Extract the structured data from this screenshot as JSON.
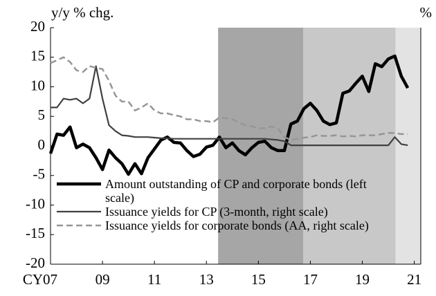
{
  "chart_data": {
    "type": "line",
    "y_label": "y/y % chg.",
    "y2_label": "%",
    "x": [
      2007.0,
      2007.25,
      2007.5,
      2007.75,
      2008.0,
      2008.25,
      2008.5,
      2008.75,
      2009.0,
      2009.25,
      2009.5,
      2009.75,
      2010.0,
      2010.25,
      2010.5,
      2010.75,
      2011.0,
      2011.25,
      2011.5,
      2011.75,
      2012.0,
      2012.25,
      2012.5,
      2012.75,
      2013.0,
      2013.25,
      2013.5,
      2013.75,
      2014.0,
      2014.25,
      2014.5,
      2014.75,
      2015.0,
      2015.25,
      2015.5,
      2015.75,
      2016.0,
      2016.25,
      2016.5,
      2016.75,
      2017.0,
      2017.25,
      2017.5,
      2017.75,
      2018.0,
      2018.25,
      2018.5,
      2018.75,
      2019.0,
      2019.25,
      2019.5,
      2019.75,
      2020.0,
      2020.25,
      2020.5,
      2020.75
    ],
    "series": [
      {
        "name": "Amount outstanding of CP and corporate bonds (left scale)",
        "color": "#000000",
        "width": 4.5,
        "dash": false,
        "values": [
          -1.3,
          2,
          1.8,
          3.2,
          -0.3,
          0.3,
          -0.3,
          -2,
          -4,
          -0.7,
          -2,
          -3,
          -4.8,
          -3,
          -4.7,
          -2,
          -0.5,
          1,
          1.5,
          0.6,
          0.5,
          -0.8,
          -1.8,
          -1.4,
          -0.2,
          0.1,
          1.5,
          -0.3,
          0.5,
          -0.8,
          -1.5,
          -0.3,
          0.6,
          0.8,
          -0.3,
          -0.8,
          -0.8,
          3.7,
          4.2,
          6.3,
          7.2,
          6,
          4.2,
          3.6,
          3.9,
          8.9,
          9.3,
          10.6,
          11.8,
          9.2,
          13.9,
          13.4,
          14.7,
          15.2,
          11.8,
          9.8
        ]
      },
      {
        "name": "Issuance yields for CP (3-month, right scale)",
        "color": "#404040",
        "width": 2.2,
        "dash": false,
        "axis": "y2",
        "values": [
          0.65,
          0.65,
          0.8,
          0.78,
          0.8,
          0.72,
          0.8,
          1.35,
          0.8,
          0.35,
          0.25,
          0.18,
          0.17,
          0.15,
          0.15,
          0.15,
          0.14,
          0.13,
          0.13,
          0.12,
          0.12,
          0.12,
          0.12,
          0.12,
          0.12,
          0.12,
          0.12,
          0.12,
          0.12,
          0.12,
          0.12,
          0.12,
          0.12,
          0.12,
          0.11,
          0.1,
          0.08,
          0.01,
          0.01,
          0.01,
          0.01,
          0.01,
          0.01,
          0.01,
          0.01,
          0.01,
          0.01,
          0.01,
          0.01,
          0.01,
          0.01,
          0.01,
          0.01,
          0.15,
          0.03,
          0.01
        ]
      },
      {
        "name": "Issuance yields for corporate bonds (AA, right scale)",
        "color": "#969696",
        "width": 2.5,
        "dash": true,
        "axis": "y2",
        "values": [
          1.4,
          1.45,
          1.5,
          1.42,
          1.28,
          1.25,
          1.35,
          1.32,
          1.3,
          1.1,
          0.85,
          0.75,
          0.75,
          0.6,
          0.65,
          0.72,
          0.6,
          0.55,
          0.55,
          0.52,
          0.5,
          0.45,
          0.45,
          0.42,
          0.42,
          0.4,
          0.48,
          0.47,
          0.45,
          0.4,
          0.35,
          0.33,
          0.3,
          0.3,
          0.33,
          0.3,
          0.15,
          0.1,
          0.12,
          0.14,
          0.15,
          0.18,
          0.17,
          0.17,
          0.18,
          0.16,
          0.17,
          0.16,
          0.18,
          0.18,
          0.18,
          0.2,
          0.22,
          0.22,
          0.2,
          0.2
        ]
      }
    ],
    "shaded_periods": [
      {
        "from": 2013.45,
        "to": 2016.73,
        "color": "#a6a6a6"
      },
      {
        "from": 2016.73,
        "to": 2020.28,
        "color": "#c8c8c8"
      },
      {
        "from": 2020.28,
        "to": 2021.25,
        "color": "#e3e3e3"
      }
    ],
    "xlim": [
      2007,
      2021.25
    ],
    "xticks": [
      {
        "value": 2007,
        "label": "CY07"
      },
      {
        "value": 2009,
        "label": "09"
      },
      {
        "value": 2011,
        "label": "11"
      },
      {
        "value": 2013,
        "label": "13"
      },
      {
        "value": 2015,
        "label": "15"
      },
      {
        "value": 2017,
        "label": "17"
      },
      {
        "value": 2019,
        "label": "19"
      },
      {
        "value": 2021,
        "label": "21"
      }
    ],
    "ylim": [
      -20,
      20
    ],
    "yticks": [
      -20,
      -15,
      -10,
      -5,
      0,
      5,
      10,
      15,
      20
    ],
    "y2lim": [
      -2,
      2
    ]
  }
}
